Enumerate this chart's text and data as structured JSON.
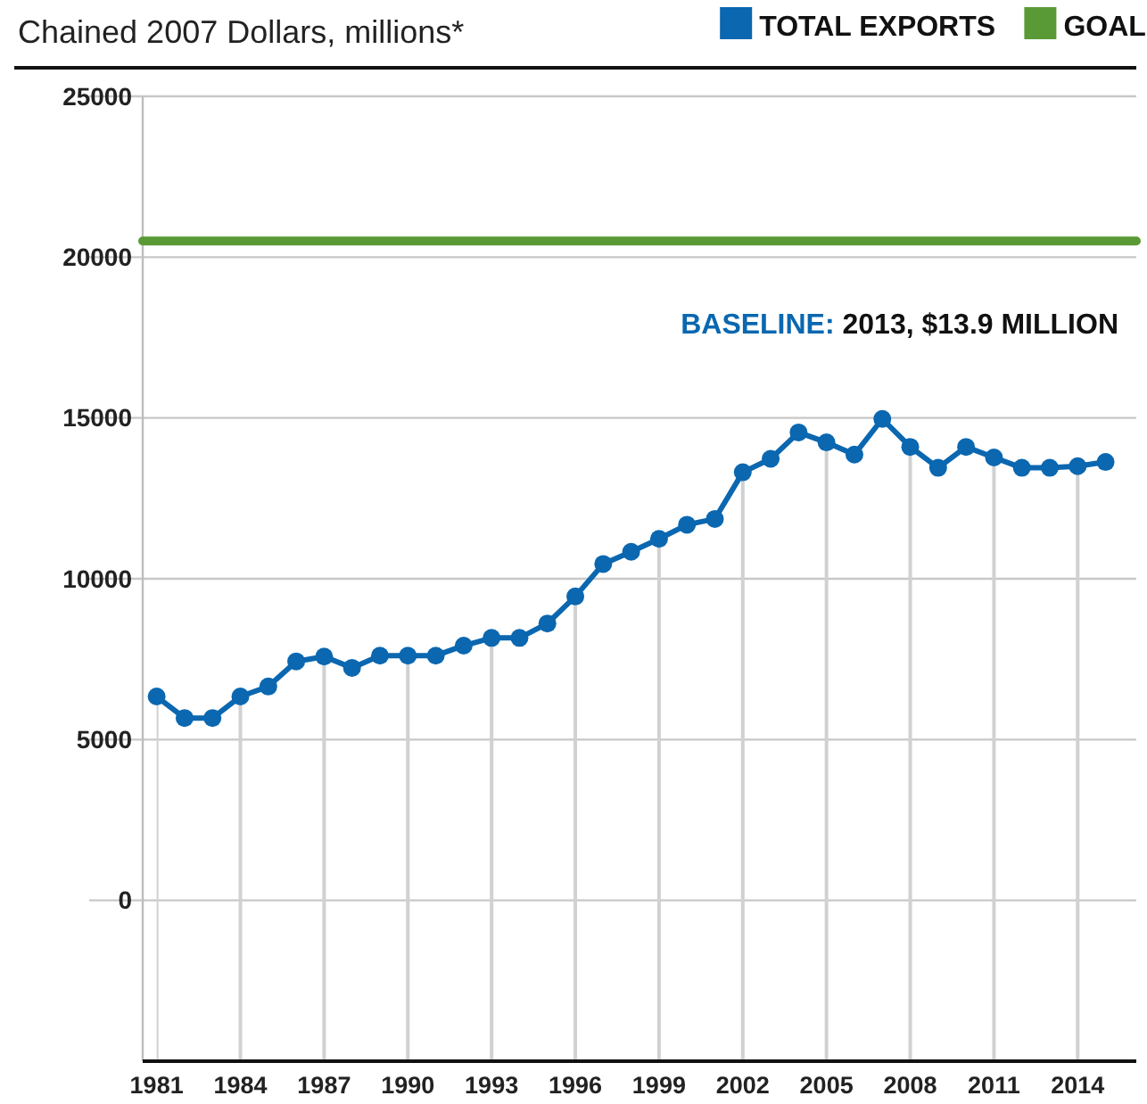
{
  "chart_data": {
    "type": "line",
    "ylabel": "Chained 2007 Dollars, millions*",
    "x": [
      1981,
      1982,
      1983,
      1984,
      1985,
      1986,
      1987,
      1988,
      1989,
      1990,
      1991,
      1992,
      1993,
      1994,
      1995,
      1996,
      1997,
      1998,
      1999,
      2000,
      2001,
      2002,
      2003,
      2004,
      2005,
      2006,
      2007,
      2008,
      2009,
      2010,
      2011,
      2012,
      2013,
      2014,
      2015
    ],
    "series": [
      {
        "name": "TOTAL EXPORTS",
        "color": "#0a67b0",
        "marker": "circle",
        "values": [
          6340,
          5670,
          5670,
          6340,
          6650,
          7430,
          7580,
          7230,
          7610,
          7610,
          7610,
          7920,
          8160,
          8160,
          8610,
          9450,
          10460,
          10840,
          11240,
          11680,
          11860,
          13310,
          13730,
          14550,
          14240,
          13860,
          14970,
          14100,
          13450,
          14100,
          13770,
          13450,
          13450,
          13500,
          13630
        ]
      },
      {
        "name": "GOAL",
        "color": "#5a9a36",
        "marker": "none",
        "x": [
          1980.5,
          2016.1
        ],
        "values": [
          20500,
          20500
        ]
      }
    ],
    "xlim": [
      1980.5,
      2016.1
    ],
    "xticks": [
      1981,
      1984,
      1987,
      1990,
      1993,
      1996,
      1999,
      2002,
      2005,
      2008,
      2011,
      2014
    ],
    "ylim": [
      -5000,
      25000
    ],
    "yticks": [
      0,
      5000,
      10000,
      15000,
      20000,
      25000
    ],
    "grid": true,
    "legend": "top",
    "annotations": [
      "BASELINE: 2013, $13.9 MILLION"
    ]
  }
}
